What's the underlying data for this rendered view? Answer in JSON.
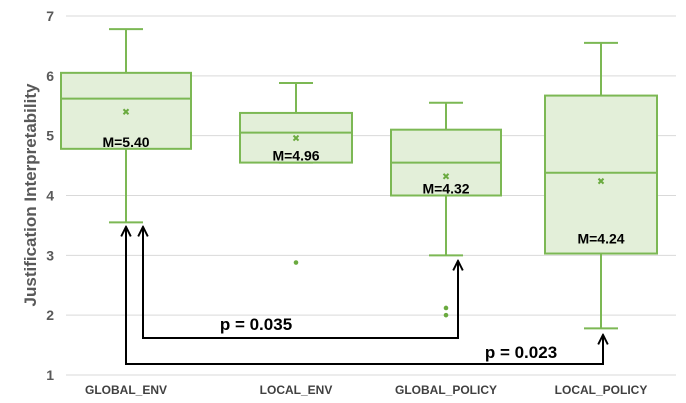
{
  "chart_data": {
    "type": "box",
    "ylabel": "Justification Interpretability",
    "ylim": [
      1,
      7
    ],
    "yticks": [
      1,
      2,
      3,
      4,
      5,
      6,
      7
    ],
    "grid": true,
    "categories": [
      "GLOBAL_ENV",
      "LOCAL_ENV",
      "GLOBAL_POLICY",
      "LOCAL_POLICY"
    ],
    "boxes": [
      {
        "name": "GLOBAL_ENV",
        "min": 3.55,
        "q1": 4.78,
        "median": 5.62,
        "q3": 6.05,
        "max": 6.78,
        "mean": 5.4,
        "outliers": [],
        "mean_label": "M=5.40"
      },
      {
        "name": "LOCAL_ENV",
        "min": 4.55,
        "q1": 4.55,
        "median": 5.05,
        "q3": 5.38,
        "max": 5.88,
        "mean": 4.96,
        "outliers": [
          2.88
        ],
        "mean_label": "M=4.96"
      },
      {
        "name": "GLOBAL_POLICY",
        "min": 3.0,
        "q1": 4.0,
        "median": 4.55,
        "q3": 5.1,
        "max": 5.55,
        "mean": 4.32,
        "outliers": [
          2.0,
          2.12
        ],
        "mean_label": "M=4.32"
      },
      {
        "name": "LOCAL_POLICY",
        "min": 1.78,
        "q1": 3.03,
        "median": 4.38,
        "q3": 5.67,
        "max": 6.55,
        "mean": 4.24,
        "outliers": [],
        "mean_label": "M=4.24"
      }
    ],
    "comparisons": [
      {
        "from": "GLOBAL_ENV",
        "to": "GLOBAL_POLICY",
        "label": "p = 0.035"
      },
      {
        "from": "GLOBAL_ENV",
        "to": "LOCAL_POLICY",
        "label": "p = 0.023"
      }
    ],
    "colors": {
      "box_stroke": "#7cb854",
      "box_fill": "#e3efd9",
      "mean_marker": "#6aaa3f",
      "grid": "#d9d9d9",
      "arrow": "#000000"
    }
  }
}
